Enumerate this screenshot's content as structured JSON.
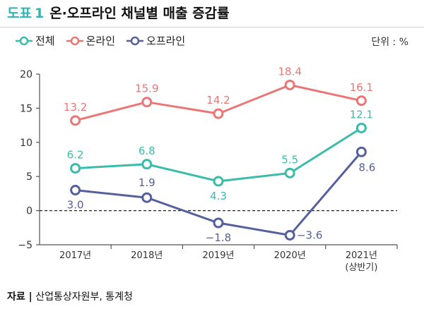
{
  "header": {
    "prefix": "도표",
    "number": "1",
    "title": "온·오프라인 채널별 매출 증감률"
  },
  "unit": "단위 : %",
  "source": {
    "label": "자료 |",
    "text": "산업통상자원부, 통계청"
  },
  "colors": {
    "online": "#e97777",
    "total": "#3bbcaa",
    "offline": "#55609c",
    "accent": "#33b3b4"
  },
  "chart_data": {
    "type": "line",
    "categories": [
      "2017년",
      "2018년",
      "2019년",
      "2020년",
      "2021년\n(상반기)"
    ],
    "ylim": [
      -5,
      20
    ],
    "yticks": [
      -5,
      0,
      5,
      10,
      15,
      20
    ],
    "grid": false,
    "legend_position": "top-left",
    "series": [
      {
        "name": "전체",
        "values": [
          6.2,
          6.8,
          4.3,
          5.5,
          12.1
        ]
      },
      {
        "name": "온라인",
        "values": [
          13.2,
          15.9,
          14.2,
          18.4,
          16.1
        ]
      },
      {
        "name": "오프라인",
        "values": [
          3.0,
          1.9,
          -1.8,
          -3.6,
          8.6
        ]
      }
    ]
  }
}
